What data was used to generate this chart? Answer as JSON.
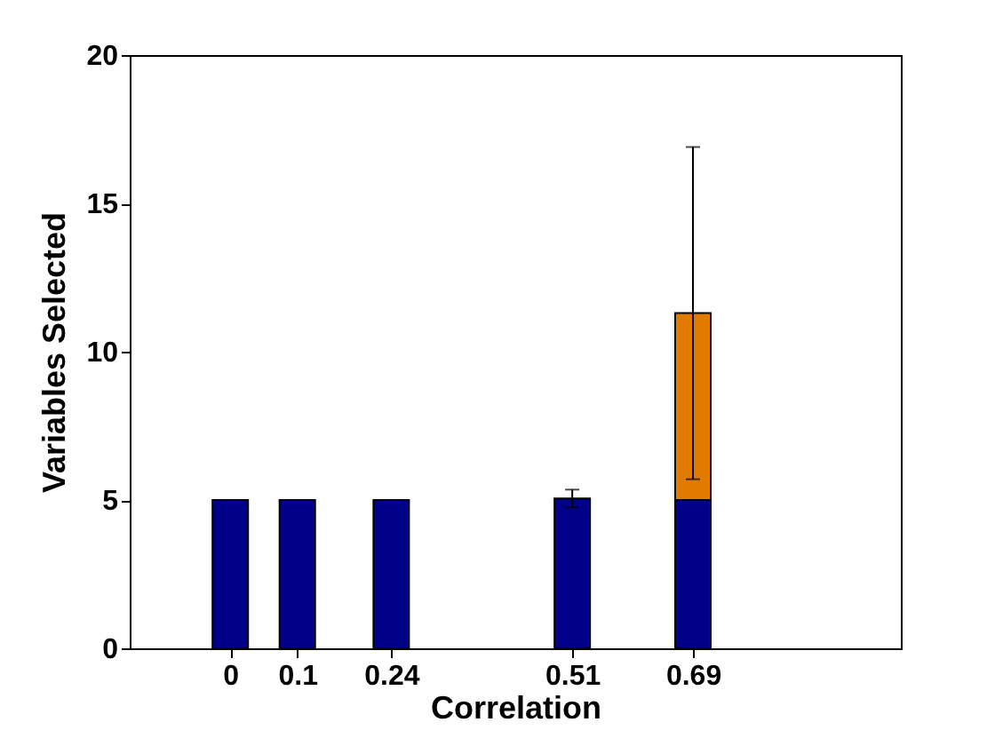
{
  "chart_data": {
    "type": "bar",
    "stacked": true,
    "xlabel": "Correlation",
    "ylabel": "Variables Selected",
    "x": [
      0,
      0.1,
      0.24,
      0.51,
      0.69
    ],
    "series": [
      {
        "color": "#000088",
        "values": [
          5,
          5,
          5,
          5.05,
          5
        ],
        "errors": [
          null,
          null,
          null,
          0.3,
          null
        ]
      },
      {
        "color": "#e07b00",
        "values": [
          null,
          null,
          null,
          null,
          6.3
        ],
        "errors": [
          null,
          null,
          null,
          null,
          5.6
        ]
      }
    ],
    "xlim": [
      -0.15,
      1.0
    ],
    "xticks": [
      0,
      0.1,
      0.24,
      0.51,
      0.69
    ],
    "ylim": [
      0,
      20
    ],
    "yticks": [
      0,
      5,
      10,
      15,
      20
    ],
    "grid": false,
    "legend": false
  }
}
